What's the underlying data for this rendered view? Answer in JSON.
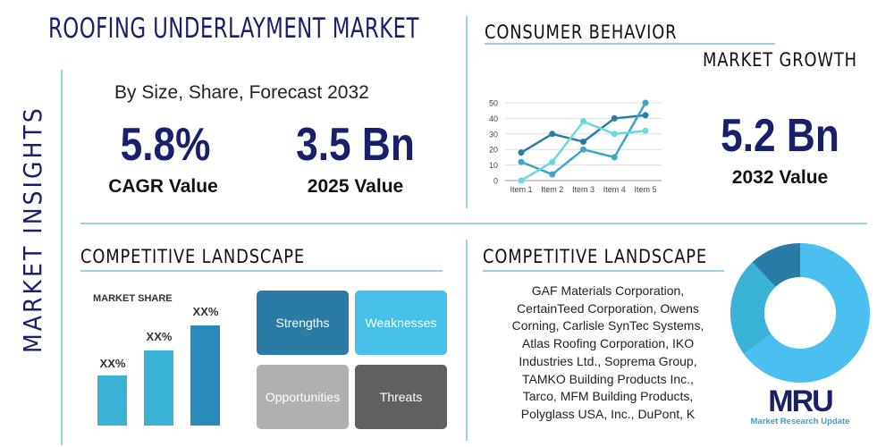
{
  "title": "ROOFING UNDERLAYMENT MARKET",
  "side_label": "MARKET INSIGHTS",
  "subtitle": "By Size, Share, Forecast 2032",
  "cagr": {
    "value": "5.8%",
    "label": "CAGR Value"
  },
  "current": {
    "value": "3.5 Bn",
    "label": "2025 Value"
  },
  "forecast": {
    "value": "5.2 Bn",
    "label": "2032 Value"
  },
  "consumer_heading": "CONSUMER BEHAVIOR",
  "growth_heading": "MARKET GROWTH",
  "competitive_left": "COMPETITIVE LANDSCAPE",
  "competitive_right": "COMPETITIVE LANDSCAPE",
  "market_share": {
    "title": "MARKET SHARE",
    "labels": [
      "XX%",
      "XX%",
      "XX%"
    ]
  },
  "swot": {
    "strengths": "Strengths",
    "weaknesses": "Weaknesses",
    "opportunities": "Opportunities",
    "threats": "Threats"
  },
  "companies": "GAF Materials Corporation, CertainTeed Corporation, Owens Corning, Carlisle SynTec Systems, Atlas Roofing Corporation, IKO Industries Ltd., Soprema Group, TAMKO Building Products Inc., Tarco, MFM Building Products, Polyglass USA, Inc., DuPont, K",
  "logo": {
    "mark": "MRU",
    "name": "Market Research Update"
  },
  "colors": {
    "navy": "#1a1f6b",
    "dark": "#2a7ba6",
    "mid": "#3ab2d5",
    "light": "#5fd6d6",
    "donut_main": "#4bbff0"
  },
  "chart_data": [
    {
      "type": "line",
      "categories": [
        "Item 1",
        "Item 2",
        "Item 3",
        "Item 4",
        "Item 5"
      ],
      "ylim": [
        0,
        50
      ],
      "yticks": [
        0,
        10,
        20,
        30,
        40,
        50
      ],
      "grid": true,
      "series": [
        {
          "values": [
            18,
            30,
            25,
            40,
            42
          ],
          "color": "#2a7ba6"
        },
        {
          "values": [
            12,
            4,
            20,
            15,
            50
          ],
          "color": "#3aa7c9"
        },
        {
          "values": [
            0,
            12,
            38,
            30,
            32
          ],
          "color": "#6ad8dc"
        }
      ]
    },
    {
      "type": "pie",
      "donut": true,
      "values": [
        65,
        23,
        12
      ],
      "colors": [
        "#4bbff0",
        "#3ab2d5",
        "#2a7ba6"
      ]
    }
  ]
}
